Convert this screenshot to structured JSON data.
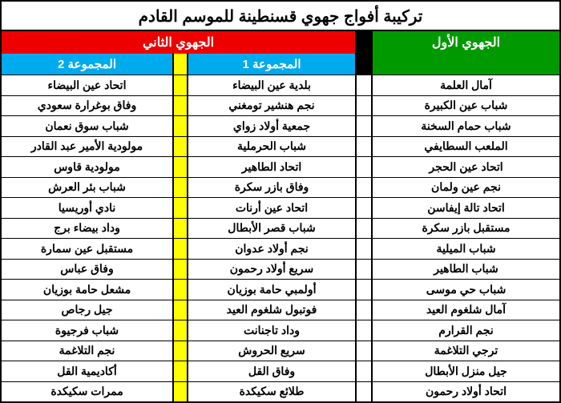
{
  "title": "تركيبة أفواج جهوي قسنطينة للموسم القادم",
  "headers": {
    "regional1": "الجهوي الأول",
    "regional2": "الجهوي الثاني",
    "group1": "المجموعة 1",
    "group2": "المجموعة 2"
  },
  "colors": {
    "green": "#009900",
    "red": "#ee0000",
    "lightblue": "#00aaee",
    "yellow": "#ffff00",
    "black": "#000000"
  },
  "rows": [
    {
      "r1": "آمال العلمة",
      "g1": "بلدية عين البيضاء",
      "g2": "اتحاد عين البيضاء"
    },
    {
      "r1": "شباب عين الكبيرة",
      "g1": "نجم هنشير تومغني",
      "g2": "وفاق بوغرارة سعودي"
    },
    {
      "r1": "شباب حمام السخنة",
      "g1": "جمعية أولاد زواي",
      "g2": "شباب سوق نعمان"
    },
    {
      "r1": "الملعب السطايفي",
      "g1": "شباب الحرملية",
      "g2": "مولودية الأمير عبد القادر"
    },
    {
      "r1": "اتحاد عين الحجر",
      "g1": "اتحاد الطاهير",
      "g2": "مولودية قاوس"
    },
    {
      "r1": "نجم عين ولمان",
      "g1": "وفاق بازر سكرة",
      "g2": "شباب بئر العرش"
    },
    {
      "r1": "اتحاد تالة إيفاسن",
      "g1": "اتحاد عين أرنات",
      "g2": "نادي أوريسيا"
    },
    {
      "r1": "مستقبل بازر سكرة",
      "g1": "شباب قصر الأبطال",
      "g2": "وداد بيضاء برج"
    },
    {
      "r1": "شباب الميلية",
      "g1": "نجم أولاد عدوان",
      "g2": "مستقبل عين سمارة"
    },
    {
      "r1": "شباب الطاهير",
      "g1": "سريع أولاد رحمون",
      "g2": "وفاق عباس"
    },
    {
      "r1": "شباب حي موسى",
      "g1": "أولمبي حامة بوزيان",
      "g2": "مشعل حامة بوزيان"
    },
    {
      "r1": "آمال شلغوم العيد",
      "g1": "فوتبول شلغوم العيد",
      "g2": "جيل رجاص"
    },
    {
      "r1": "نجم القرارم",
      "g1": "وداد تاجنانت",
      "g2": "شباب فرجيوة"
    },
    {
      "r1": "ترجي التلاغمة",
      "g1": "سريع الحروش",
      "g2": "نجم التلاغمة"
    },
    {
      "r1": "جيل منزل الأبطال",
      "g1": "وفاق القل",
      "g2": "أكاديمية القل"
    },
    {
      "r1": "اتحاد أولاد رحمون",
      "g1": "طلائع سكيكدة",
      "g2": "ممرات سكيكدة"
    }
  ]
}
